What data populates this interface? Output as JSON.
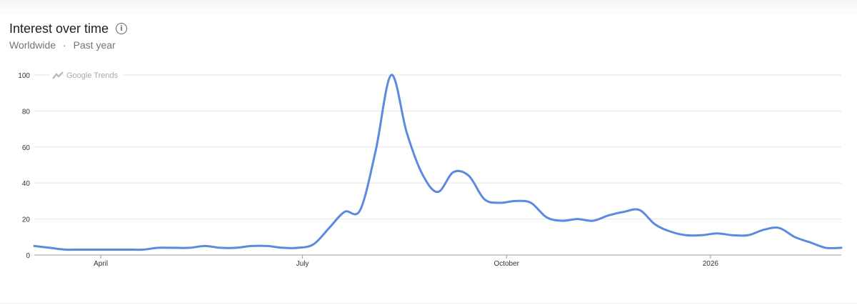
{
  "header": {
    "title": "Interest over time",
    "info_icon": "info-icon",
    "region": "Worldwide",
    "separator": "·",
    "period": "Past year"
  },
  "watermark": "Google Trends",
  "chart_data": {
    "type": "line",
    "title": "Interest over time",
    "color": "#5b8ae0",
    "ylim": [
      0,
      100
    ],
    "yticks": [
      0,
      20,
      40,
      60,
      80,
      100
    ],
    "xtick_labels": [
      {
        "label": "April",
        "date": "2025-04-01"
      },
      {
        "label": "July",
        "date": "2025-07-01"
      },
      {
        "label": "October",
        "date": "2025-10-01"
      },
      {
        "label": "2026",
        "date": "2026-01-01"
      }
    ],
    "grid": true,
    "x_start": "2025-03-02",
    "x_step": "weekly",
    "values": [
      5,
      4,
      3,
      3,
      3,
      3,
      3,
      3,
      4,
      4,
      4,
      5,
      4,
      4,
      5,
      5,
      4,
      4,
      6,
      15,
      24,
      25,
      58,
      100,
      68,
      45,
      35,
      46,
      44,
      31,
      29,
      30,
      29,
      21,
      19,
      20,
      19,
      22,
      24,
      25,
      17,
      13,
      11,
      11,
      12,
      11,
      11,
      14,
      15,
      10,
      7,
      4,
      4
    ]
  }
}
